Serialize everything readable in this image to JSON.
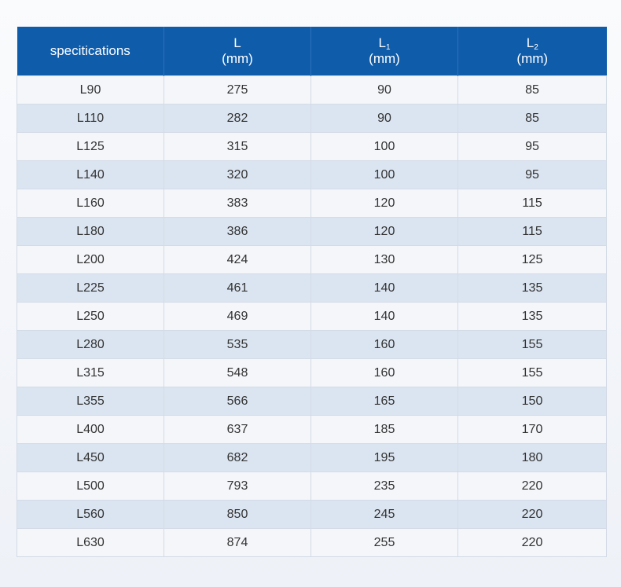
{
  "table": {
    "headers": [
      {
        "main": "specitications",
        "sub": "",
        "unit": ""
      },
      {
        "main": "L",
        "sub": "",
        "unit": "(mm)"
      },
      {
        "main": "L",
        "sub": "1",
        "unit": "(mm)"
      },
      {
        "main": "L",
        "sub": "2",
        "unit": "(mm)"
      }
    ],
    "rows": [
      [
        "L90",
        "275",
        "90",
        "85"
      ],
      [
        "L110",
        "282",
        "90",
        "85"
      ],
      [
        "L125",
        "315",
        "100",
        "95"
      ],
      [
        "L140",
        "320",
        "100",
        "95"
      ],
      [
        "L160",
        "383",
        "120",
        "115"
      ],
      [
        "L180",
        "386",
        "120",
        "115"
      ],
      [
        "L200",
        "424",
        "130",
        "125"
      ],
      [
        "L225",
        "461",
        "140",
        "135"
      ],
      [
        "L250",
        "469",
        "140",
        "135"
      ],
      [
        "L280",
        "535",
        "160",
        "155"
      ],
      [
        "L315",
        "548",
        "160",
        "155"
      ],
      [
        "L355",
        "566",
        "165",
        "150"
      ],
      [
        "L400",
        "637",
        "185",
        "170"
      ],
      [
        "L450",
        "682",
        "195",
        "180"
      ],
      [
        "L500",
        "793",
        "235",
        "220"
      ],
      [
        "L560",
        "850",
        "245",
        "220"
      ],
      [
        "L630",
        "874",
        "255",
        "220"
      ]
    ]
  },
  "colors": {
    "header_bg": "#0f5cab",
    "header_text": "#ffffff",
    "row_odd": "#f4f6fa",
    "row_even": "#dbe5f1",
    "cell_text": "#333333"
  }
}
